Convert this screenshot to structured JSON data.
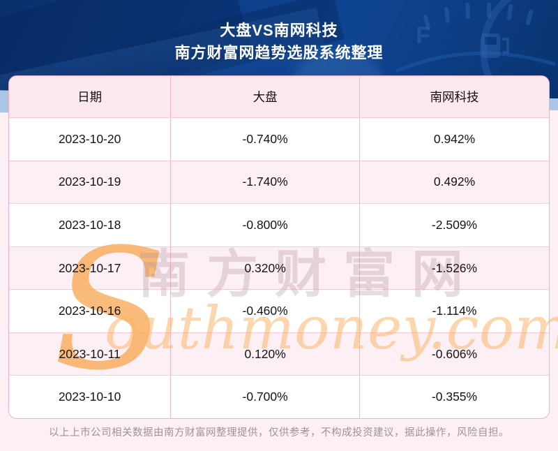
{
  "banner": {
    "title": "大盘VS南网科技",
    "subtitle": "南方财富网趋势选股系统整理",
    "gauge_label": "F"
  },
  "chart_data": {
    "type": "table",
    "title": "大盘VS南网科技",
    "subtitle": "南方财富网趋势选股系统整理",
    "columns": [
      "日期",
      "大盘",
      "南网科技"
    ],
    "rows": [
      [
        "2023-10-20",
        "-0.740%",
        "0.942%"
      ],
      [
        "2023-10-19",
        "-1.740%",
        "0.492%"
      ],
      [
        "2023-10-18",
        "-0.800%",
        "-2.509%"
      ],
      [
        "2023-10-17",
        "0.320%",
        "-1.526%"
      ],
      [
        "2023-10-16",
        "-0.460%",
        "-1.114%"
      ],
      [
        "2023-10-11",
        "0.120%",
        "-0.606%"
      ],
      [
        "2023-10-10",
        "-0.700%",
        "-0.355%"
      ]
    ]
  },
  "watermark": {
    "initial": "S",
    "cn": "南方财富网",
    "en": "outhmoney.com"
  },
  "footer": {
    "disclaimer": "以上上市公司相关数据由南方财富网整理提供，仅供参考，不构成投资建议，据此操作，风险自担。"
  },
  "colors": {
    "banner_blue": "#0d3f8c",
    "stripe_blue": "#a9c6e7",
    "page_pink": "#fdf0f4",
    "header_pink": "#fce9f0",
    "row_alt_pink": "#fdf0f4",
    "border_pink": "#f3aec2",
    "watermark_orange": "#f7a64d",
    "footer_gray": "#a19298"
  }
}
